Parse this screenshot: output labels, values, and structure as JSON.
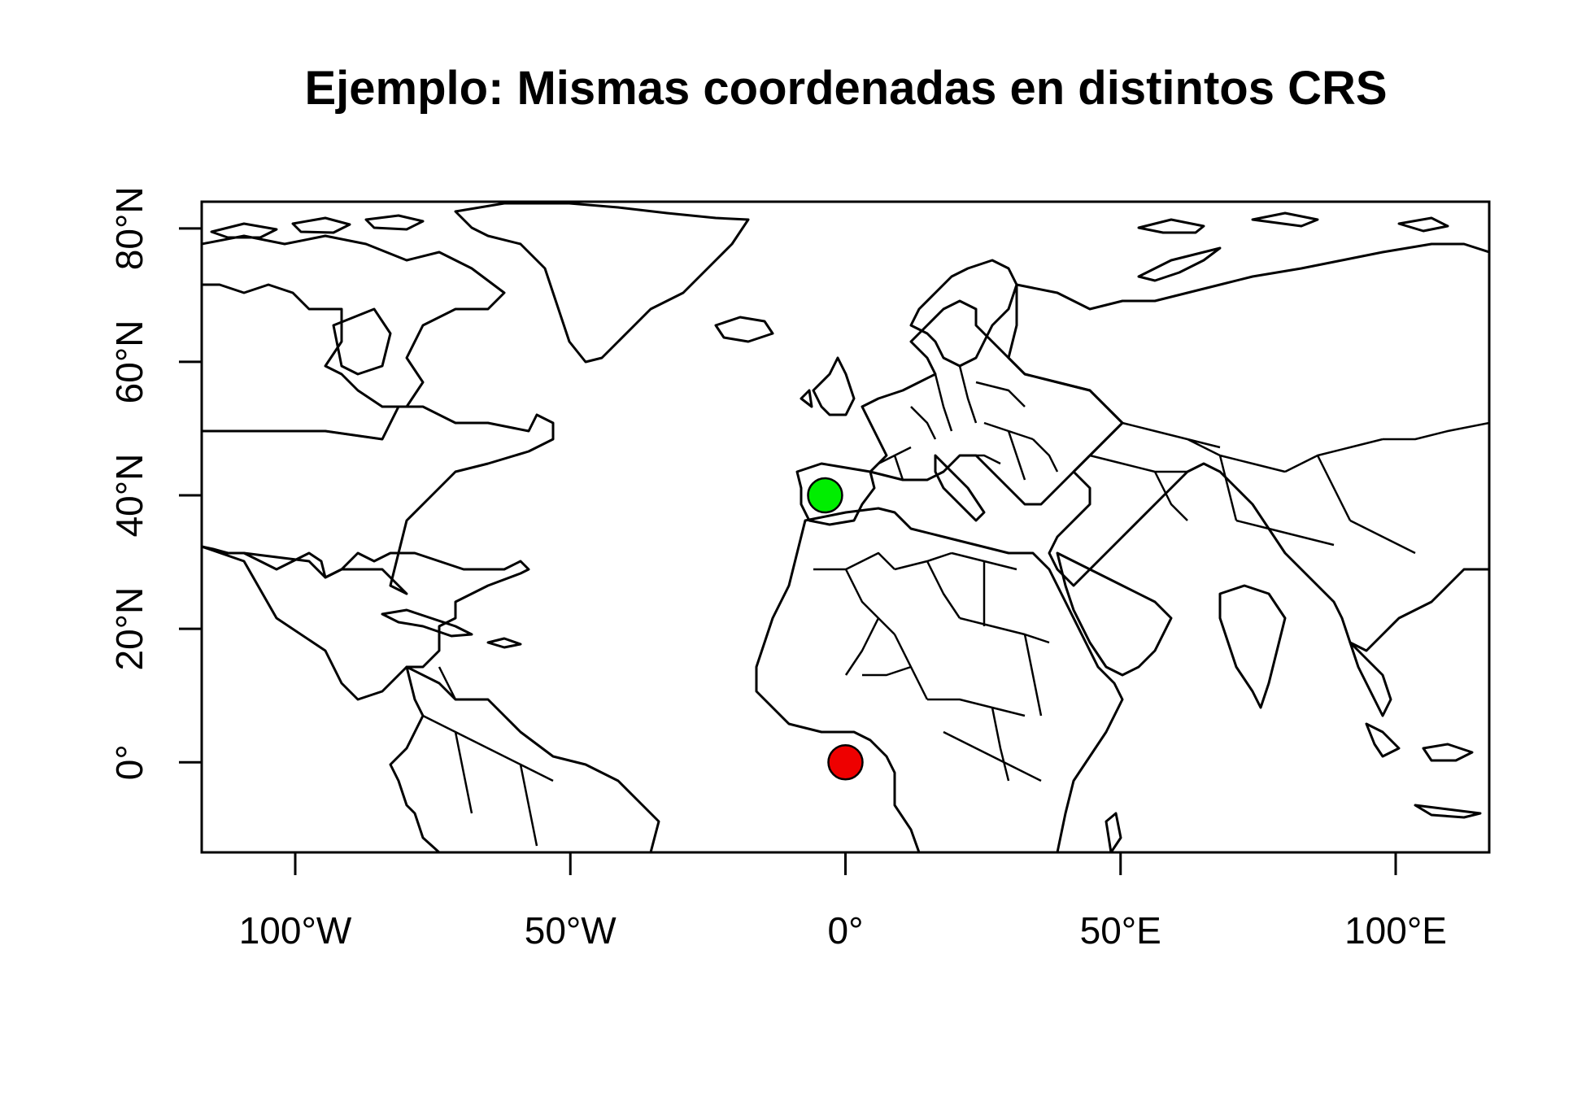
{
  "title": "Ejemplo: Mismas coordenadas en distintos CRS",
  "chart_data": {
    "type": "scatter",
    "title": "Ejemplo: Mismas coordenadas en distintos CRS",
    "xlim": [
      -117,
      117
    ],
    "ylim": [
      -13.5,
      84
    ],
    "x_ticks": [
      {
        "value": -100,
        "label": "100°W"
      },
      {
        "value": -50,
        "label": "50°W"
      },
      {
        "value": 0,
        "label": "0°"
      },
      {
        "value": 50,
        "label": "50°E"
      },
      {
        "value": 100,
        "label": "100°E"
      }
    ],
    "y_ticks": [
      {
        "value": 0,
        "label": "0°"
      },
      {
        "value": 20,
        "label": "20°N"
      },
      {
        "value": 40,
        "label": "40°N"
      },
      {
        "value": 60,
        "label": "60°N"
      },
      {
        "value": 80,
        "label": "80°N"
      }
    ],
    "points": [
      {
        "lon": -3.7,
        "lat": 40.0,
        "color": "#00ee00"
      },
      {
        "lon": 0,
        "lat": 0,
        "color": "#ee0000"
      }
    ],
    "basemap": "world country borders",
    "grid": false
  }
}
